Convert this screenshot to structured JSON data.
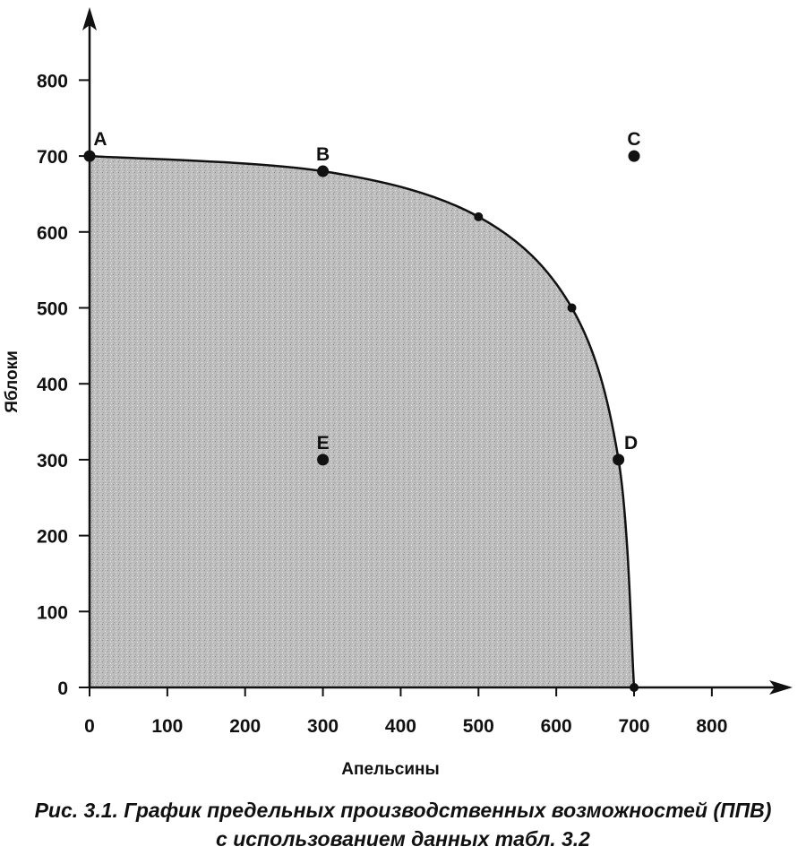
{
  "chart_data": {
    "type": "line",
    "xlabel": "Апельсины",
    "ylabel": "Яблоки",
    "xlim": [
      0,
      900
    ],
    "ylim": [
      0,
      900
    ],
    "x_ticks": [
      0,
      100,
      200,
      300,
      400,
      500,
      600,
      700,
      800
    ],
    "y_ticks": [
      0,
      100,
      200,
      300,
      400,
      500,
      600,
      700,
      800
    ],
    "x_tick_labels": [
      "0",
      "100",
      "200",
      "300",
      "400",
      "500",
      "600",
      "700",
      "800"
    ],
    "y_tick_labels": [
      "0",
      "100",
      "200",
      "300",
      "400",
      "500",
      "600",
      "700",
      "800"
    ],
    "frontier": {
      "x": [
        0,
        300,
        500,
        620,
        680,
        700
      ],
      "y": [
        700,
        680,
        620,
        500,
        300,
        0
      ],
      "shaded_below": true
    },
    "points": [
      {
        "label": "A",
        "x": 0,
        "y": 700
      },
      {
        "label": "B",
        "x": 300,
        "y": 680
      },
      {
        "label": "C",
        "x": 700,
        "y": 700
      },
      {
        "label": "D",
        "x": 680,
        "y": 300
      },
      {
        "label": "E",
        "x": 300,
        "y": 300
      }
    ],
    "minor_points": [
      {
        "x": 500,
        "y": 620
      },
      {
        "x": 620,
        "y": 500
      },
      {
        "x": 700,
        "y": 0
      }
    ],
    "grid": false,
    "colors": {
      "line": "#111111",
      "fill": "#b8b8b8"
    }
  },
  "caption": {
    "line1": "Рис. 3.1. График предельных производственных возможностей (ППВ)",
    "line2": "с использованием данных табл. 3.2"
  }
}
